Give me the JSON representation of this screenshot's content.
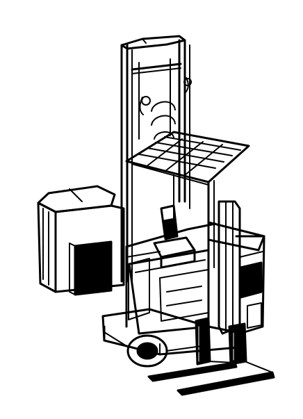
{
  "image": {
    "subject": "forklift-truck-line-drawing",
    "colors": {
      "background": "#ffffff",
      "ink": "#000000"
    }
  }
}
